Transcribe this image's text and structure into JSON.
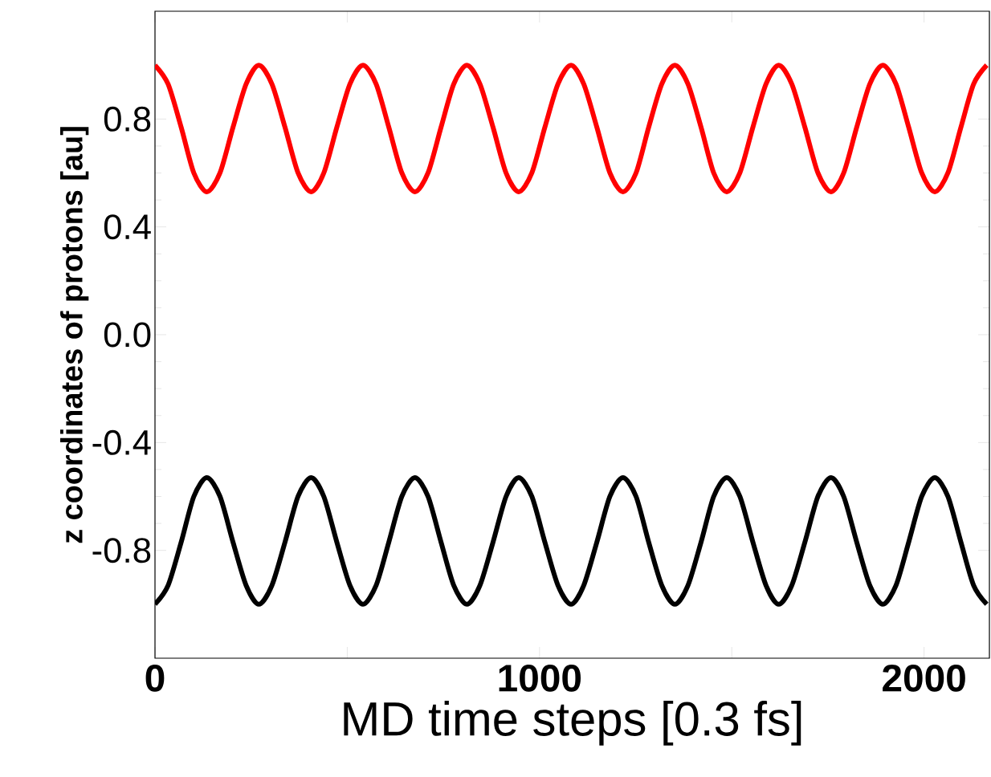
{
  "chart_data": {
    "type": "line",
    "xlabel": "MD time steps [0.3 fs]",
    "ylabel": "z coordinates of protons [au]",
    "x": [
      0,
      34,
      68,
      101,
      135,
      169,
      203,
      237,
      270,
      304,
      338,
      372,
      406,
      439,
      473,
      507,
      541,
      575,
      608,
      642,
      676,
      710,
      744,
      777,
      811,
      845,
      879,
      913,
      946,
      980,
      1014,
      1048,
      1082,
      1115,
      1149,
      1183,
      1217,
      1251,
      1284,
      1318,
      1352,
      1386,
      1420,
      1453,
      1487,
      1521,
      1555,
      1589,
      1622,
      1656,
      1690,
      1724,
      1758,
      1791,
      1825,
      1859,
      1893,
      1927,
      1960,
      1994,
      2028,
      2062,
      2096,
      2129,
      2163
    ],
    "series": [
      {
        "color": "#ff0000",
        "values": [
          1.0,
          0.93,
          0.77,
          0.6,
          0.53,
          0.6,
          0.77,
          0.93,
          1.0,
          0.93,
          0.77,
          0.6,
          0.53,
          0.6,
          0.77,
          0.93,
          1.0,
          0.93,
          0.77,
          0.6,
          0.53,
          0.6,
          0.77,
          0.93,
          1.0,
          0.93,
          0.77,
          0.6,
          0.53,
          0.6,
          0.77,
          0.93,
          1.0,
          0.93,
          0.77,
          0.6,
          0.53,
          0.6,
          0.77,
          0.93,
          1.0,
          0.93,
          0.77,
          0.6,
          0.53,
          0.6,
          0.77,
          0.93,
          1.0,
          0.93,
          0.77,
          0.6,
          0.53,
          0.6,
          0.77,
          0.93,
          1.0,
          0.93,
          0.77,
          0.6,
          0.53,
          0.6,
          0.77,
          0.93,
          1.0
        ]
      },
      {
        "color": "#000000",
        "values": [
          -1.0,
          -0.93,
          -0.77,
          -0.6,
          -0.53,
          -0.6,
          -0.77,
          -0.93,
          -1.0,
          -0.93,
          -0.77,
          -0.6,
          -0.53,
          -0.6,
          -0.77,
          -0.93,
          -1.0,
          -0.93,
          -0.77,
          -0.6,
          -0.53,
          -0.6,
          -0.77,
          -0.93,
          -1.0,
          -0.93,
          -0.77,
          -0.6,
          -0.53,
          -0.6,
          -0.77,
          -0.93,
          -1.0,
          -0.93,
          -0.77,
          -0.6,
          -0.53,
          -0.6,
          -0.77,
          -0.93,
          -1.0,
          -0.93,
          -0.77,
          -0.6,
          -0.53,
          -0.6,
          -0.77,
          -0.93,
          -1.0,
          -0.93,
          -0.77,
          -0.6,
          -0.53,
          -0.6,
          -0.77,
          -0.93,
          -1.0,
          -0.93,
          -0.77,
          -0.6,
          -0.53,
          -0.6,
          -0.77,
          -0.93,
          -1.0
        ]
      }
    ],
    "xlim": [
      0,
      2170
    ],
    "ylim": [
      -1.2,
      1.2
    ],
    "xticks": [
      0,
      {
        "value": 500,
        "label": null
      },
      1000,
      {
        "value": 1500,
        "label": null
      },
      2000
    ],
    "yticks": [
      {
        "value": -0.8,
        "label": "-0.8"
      },
      {
        "value": -0.4,
        "label": "-0.4"
      },
      {
        "value": 0,
        "label": "0.0"
      },
      {
        "value": 0.4,
        "label": "0.4"
      },
      {
        "value": 0.8,
        "label": "0.8"
      }
    ],
    "grid": false,
    "marker": "none",
    "line_style": "solid"
  }
}
